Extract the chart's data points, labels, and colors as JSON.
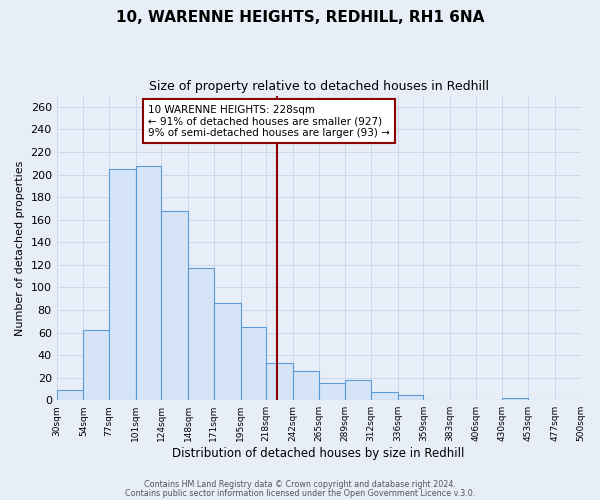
{
  "title": "10, WARENNE HEIGHTS, REDHILL, RH1 6NA",
  "subtitle": "Size of property relative to detached houses in Redhill",
  "xlabel": "Distribution of detached houses by size in Redhill",
  "ylabel": "Number of detached properties",
  "bin_edges": [
    30,
    54,
    77,
    101,
    124,
    148,
    171,
    195,
    218,
    242,
    265,
    289,
    312,
    336,
    359,
    383,
    406,
    430,
    453,
    477,
    500
  ],
  "bar_heights": [
    9,
    62,
    205,
    208,
    168,
    117,
    86,
    65,
    33,
    26,
    15,
    18,
    7,
    5,
    0,
    0,
    0,
    2,
    0,
    0
  ],
  "bar_fill_color": "#d6e4f7",
  "bar_edge_color": "#5b9bd5",
  "vline_x": 228,
  "vline_color": "#8b0000",
  "annotation_line1": "10 WARENNE HEIGHTS: 228sqm",
  "annotation_line2": "← 91% of detached houses are smaller (927)",
  "annotation_line3": "9% of semi-detached houses are larger (93) →",
  "annotation_box_color": "#8b0000",
  "annotation_fill": "#ffffff",
  "ylim": [
    0,
    270
  ],
  "yticks": [
    0,
    20,
    40,
    60,
    80,
    100,
    120,
    140,
    160,
    180,
    200,
    220,
    240,
    260
  ],
  "grid_color": "#c8d4e8",
  "bg_color": "#e8eef8",
  "title_fontsize": 11,
  "subtitle_fontsize": 9,
  "footer_line1": "Contains HM Land Registry data © Crown copyright and database right 2024.",
  "footer_line2": "Contains public sector information licensed under the Open Government Licence v.3.0."
}
